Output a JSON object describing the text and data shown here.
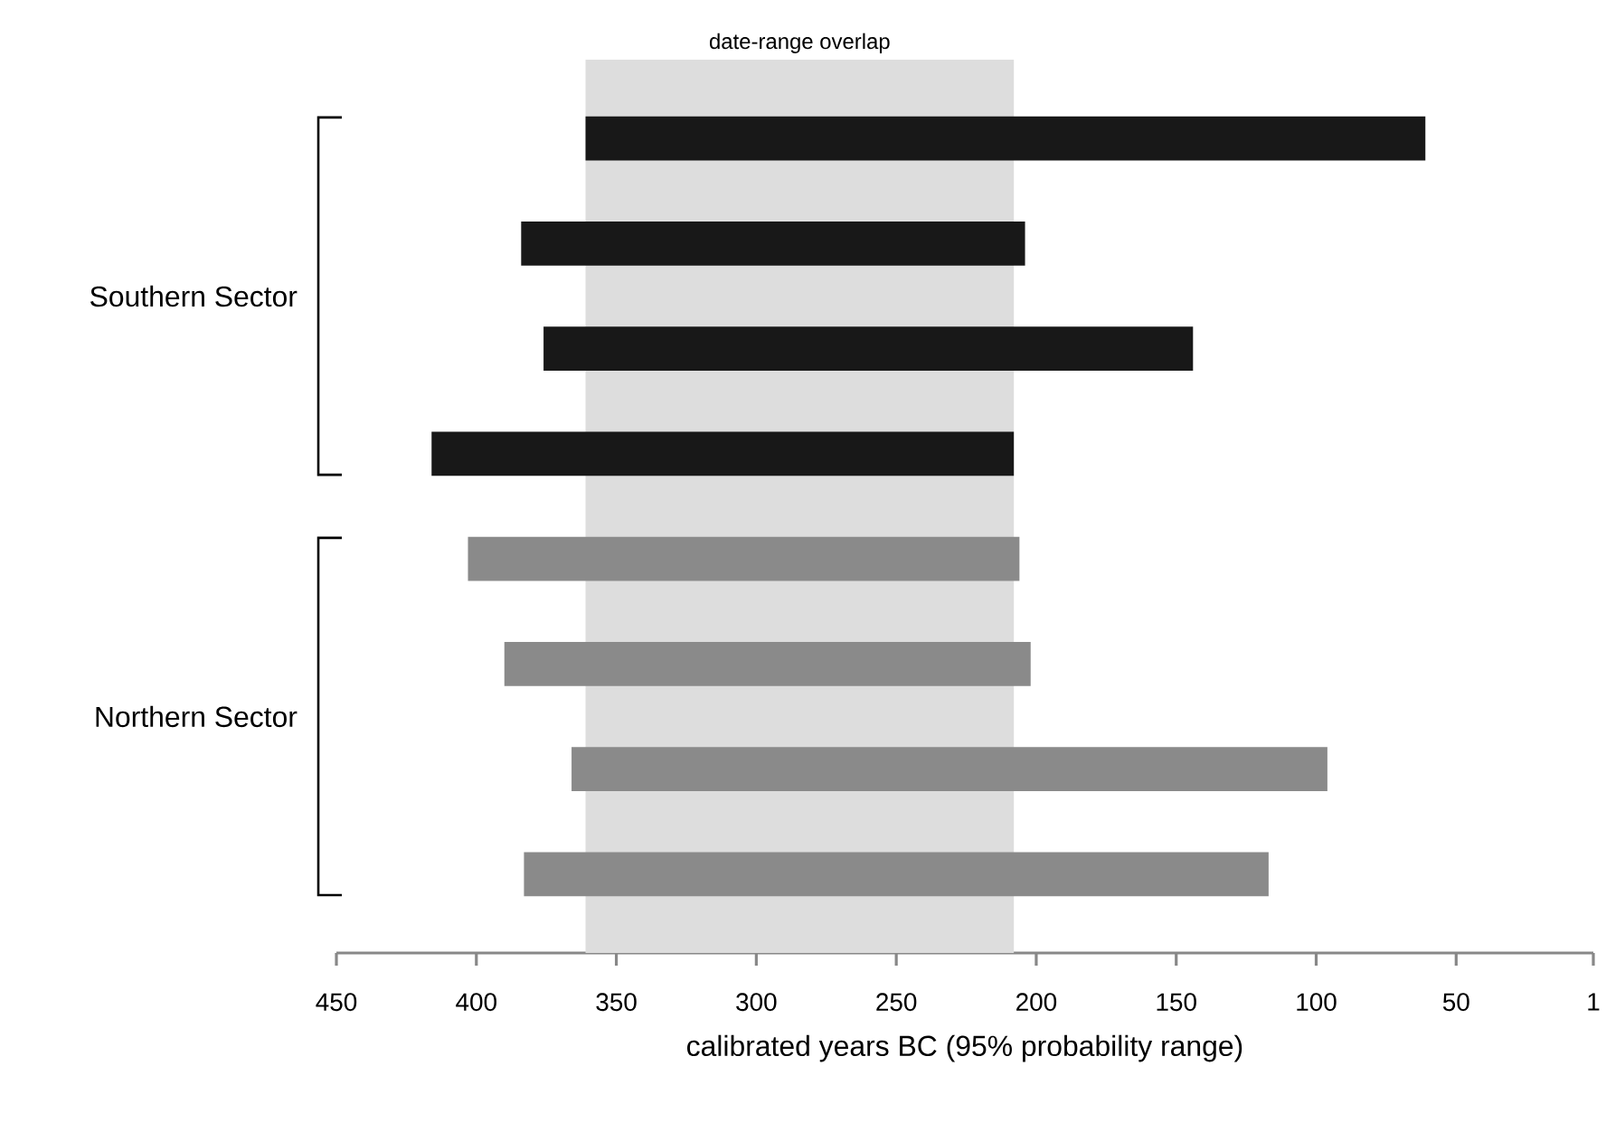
{
  "chart_data": {
    "type": "bar",
    "orientation": "horizontal",
    "categories": [
      null,
      null,
      null,
      null,
      null,
      null,
      null,
      null
    ],
    "base": [
      61,
      204,
      144,
      208,
      206,
      202,
      96,
      117
    ],
    "values": [
      300,
      180,
      232,
      208,
      197,
      188,
      270,
      266
    ],
    "colors": [
      "#181818",
      "#181818",
      "#181818",
      "#181818",
      "#8a8a8a",
      "#8a8a8a",
      "#8a8a8a",
      "#8a8a8a"
    ],
    "annotations": [
      "Southern Sector",
      "Northern Sector"
    ],
    "xlim": [
      450,
      1
    ],
    "xticks": [
      {
        "value": 450,
        "label": "450"
      },
      {
        "value": 400,
        "label": "400"
      },
      {
        "value": 350,
        "label": "350"
      },
      {
        "value": 300,
        "label": "300"
      },
      {
        "value": 250,
        "label": "250"
      },
      {
        "value": 200,
        "label": "200"
      },
      {
        "value": 150,
        "label": "150"
      },
      {
        "value": 100,
        "label": "100"
      },
      {
        "value": 50,
        "label": "50"
      },
      {
        "value": 1,
        "label": "1"
      }
    ],
    "xlabel": "calibrated years BC (95% probability range)",
    "bands": [
      {
        "axis": "x",
        "from": 361,
        "to": 208,
        "label": "date-range overlap",
        "color": "#dddddd"
      }
    ],
    "tick_labels": "x"
  }
}
